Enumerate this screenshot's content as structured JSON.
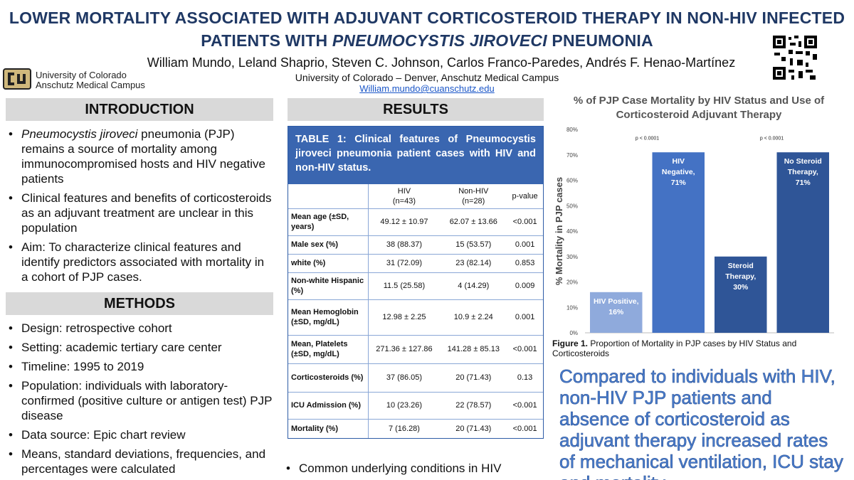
{
  "header": {
    "title_line1": "LOWER MORTALITY ASSOCIATED WITH ADJUVANT CORTICOSTEROID THERAPY IN NON-HIV INFECTED",
    "title_line2_pre": "PATIENTS WITH ",
    "title_line2_em": "PNEUMOCYSTIS JIROVECI",
    "title_line2_post": " PNEUMONIA",
    "authors": "William Mundo, Leland Shaprio, Steven C. Johnson, Carlos Franco-Paredes, Andrés F. Henao-Martínez",
    "affiliation": "University of Colorado – Denver, Anschutz Medical Campus",
    "email": "William.mundo@cuanschutz.edu"
  },
  "logo": {
    "line1": "University of Colorado",
    "line2": "Anschutz Medical Campus",
    "icon": "cu-logo-icon"
  },
  "introduction": {
    "heading": "INTRODUCTION",
    "bullet1_em": "Pneumocystis jiroveci",
    "bullet1_rest": " pneumonia (PJP) remains a source of mortality among immunocompromised hosts and HIV negative patients",
    "bullet2": "Clinical features and benefits of corticosteroids as an adjuvant treatment are unclear in this population",
    "bullet3": "Aim: To characterize clinical features and identify predictors associated with mortality in a cohort of PJP cases."
  },
  "methods": {
    "heading": "METHODS",
    "bullets": [
      "Design: retrospective cohort",
      "Setting: academic tertiary care center",
      "Timeline: 1995 to 2019",
      "Population: individuals with laboratory-confirmed (positive culture or antigen test) PJP disease",
      "Data source: Epic chart review",
      "Means, standard deviations, frequencies, and percentages were calculated"
    ]
  },
  "results": {
    "heading": "RESULTS",
    "table_caption": "TABLE 1: Clinical features of Pneumocystis jiroveci pneumonia patient cases with HIV and non-HIV status.",
    "col_hiv": "HIV\n(n=43)",
    "col_nonhiv": "Non-HIV\n(n=28)",
    "col_p": "p-value",
    "rows": [
      {
        "label": "Mean age (±SD, years)",
        "hiv": "49.12 ± 10.97",
        "nonhiv": "62.07 ± 13.66",
        "p": "<0.001"
      },
      {
        "label": "Male sex (%)",
        "hiv": "38 (88.37)",
        "nonhiv": "15 (53.57)",
        "p": "0.001"
      },
      {
        "label": "white (%)",
        "hiv": "31 (72.09)",
        "nonhiv": "23 (82.14)",
        "p": "0.853"
      },
      {
        "label": "Non-white Hispanic (%)",
        "hiv": "11.5 (25.58)",
        "nonhiv": "4 (14.29)",
        "p": "0.009"
      },
      {
        "label": "Mean Hemoglobin (±SD, mg/dL)",
        "hiv": "12.98 ± 2.25",
        "nonhiv": "10.9 ± 2.24",
        "p": "0.001"
      },
      {
        "label": "Mean, Platelets (±SD, mg/dL)",
        "hiv": "271.36 ± 127.86",
        "nonhiv": "141.28 ± 85.13",
        "p": "<0.001"
      },
      {
        "label": "Corticosteroids (%)",
        "hiv": "37 (86.05)",
        "nonhiv": "20 (71.43)",
        "p": "0.13"
      },
      {
        "label": "ICU Admission (%)",
        "hiv": "10 (23.26)",
        "nonhiv": "22 (78.57)",
        "p": "<0.001"
      },
      {
        "label": "Mortality (%)",
        "hiv": "7 (16.28)",
        "nonhiv": "20 (71.43)",
        "p": "<0.001"
      }
    ],
    "bullet_bottom": "Common underlying conditions in HIV"
  },
  "figure": {
    "caption_bold": "Figure 1.",
    "caption_rest": " Proportion of Mortality in PJP cases by HIV Status and Corticosteroids"
  },
  "callout": "Compared to individuals with HIV, non-HIV PJP patients and absence of corticosteroid as adjuvant therapy increased rates of mechanical ventilation, ICU stay and mortality",
  "colors": {
    "title": "#1f3864",
    "bar_light": "#8faadc",
    "bar_mid": "#4472c4",
    "bar_dark": "#2f5597",
    "table_header": "#3a66b0",
    "callout": "#4a7fd0"
  },
  "chart_data": {
    "type": "bar",
    "title": "% of PJP Case Mortality by HIV Status and Use of Corticosteroid Adjuvant Therapy",
    "ylabel": "% Mortality in PJP cases",
    "xlabel": "",
    "ylim": [
      0,
      80
    ],
    "yticks": [
      "0%",
      "10%",
      "20%",
      "30%",
      "40%",
      "50%",
      "60%",
      "70%",
      "80%"
    ],
    "categories": [
      "HIV Positive",
      "HIV Negative",
      "Steroid Therapy",
      "No Steroid Therapy"
    ],
    "values": [
      16,
      71,
      30,
      71
    ],
    "bar_labels": [
      "HIV Positive,\n16%",
      "HIV\nNegative,\n71%",
      "Steroid\nTherapy,\n30%",
      "No Steroid\nTherapy,\n71%"
    ],
    "annotations": [
      "p < 0.0001",
      "p < 0.0001"
    ],
    "grid": false,
    "legend": "none"
  }
}
